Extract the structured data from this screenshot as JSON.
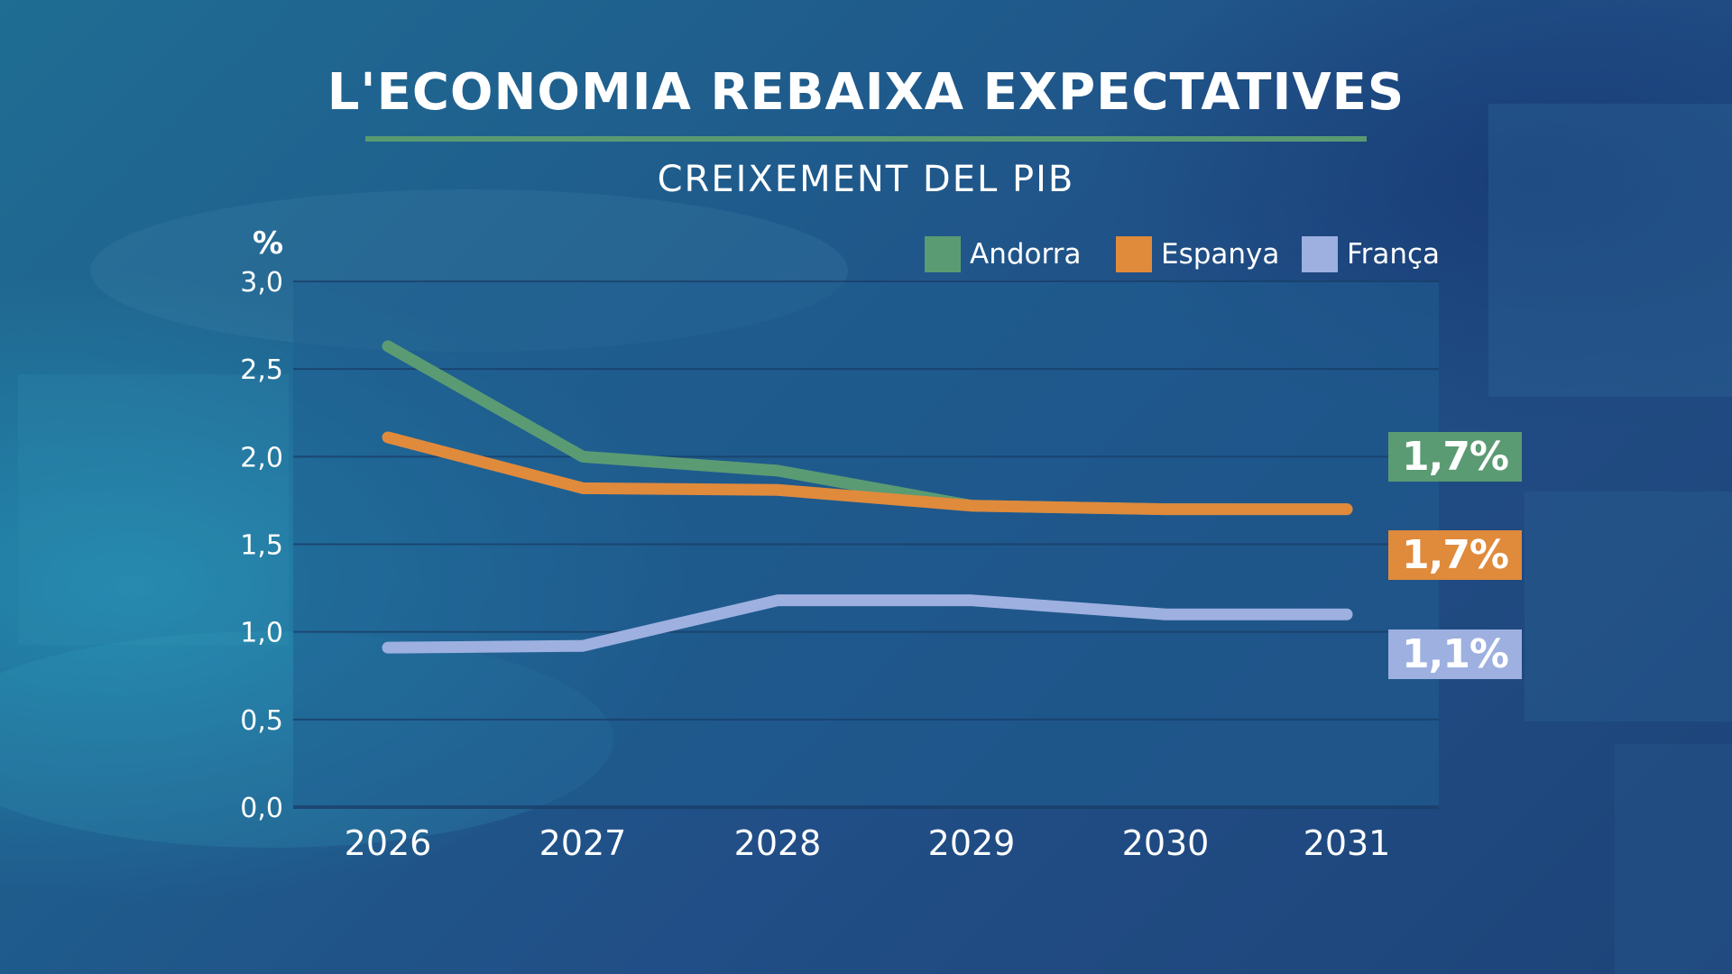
{
  "title": "L'ECONOMIA REBAIXA EXPECTATIVES",
  "subtitle": "CREIXEMENT DEL PIB",
  "unit": "%",
  "legend": [
    {
      "name": "Andorra",
      "color": "#5b9b73"
    },
    {
      "name": "Espanya",
      "color": "#e08a3c"
    },
    {
      "name": "França",
      "color": "#9db0e0"
    }
  ],
  "end_labels": [
    {
      "text": "1,7%",
      "color": "#5b9b73"
    },
    {
      "text": "1,7%",
      "color": "#e08a3c"
    },
    {
      "text": "1,1%",
      "color": "#9db0e0"
    }
  ],
  "chart_data": {
    "type": "line",
    "title": "L'ECONOMIA REBAIXA EXPECTATIVES",
    "subtitle": "CREIXEMENT DEL PIB",
    "ylabel": "%",
    "x": [
      "2026",
      "2027",
      "2028",
      "2029",
      "2030",
      "2031"
    ],
    "ylim": [
      0,
      3.0
    ],
    "yticks": [
      "0,0",
      "0,5",
      "1,0",
      "1,5",
      "2,0",
      "2,5",
      "3,0"
    ],
    "ytick_values": [
      0,
      0.5,
      1.0,
      1.5,
      2.0,
      2.5,
      3.0
    ],
    "grid": true,
    "legend_position": "top-right",
    "series": [
      {
        "name": "Andorra",
        "color": "#5b9b73",
        "values": [
          2.63,
          2.0,
          1.92,
          1.72,
          1.7,
          1.7
        ]
      },
      {
        "name": "Espanya",
        "color": "#e08a3c",
        "values": [
          2.11,
          1.82,
          1.81,
          1.72,
          1.7,
          1.7
        ]
      },
      {
        "name": "França",
        "color": "#9db0e0",
        "values": [
          0.91,
          0.92,
          1.18,
          1.18,
          1.1,
          1.1
        ]
      }
    ]
  }
}
